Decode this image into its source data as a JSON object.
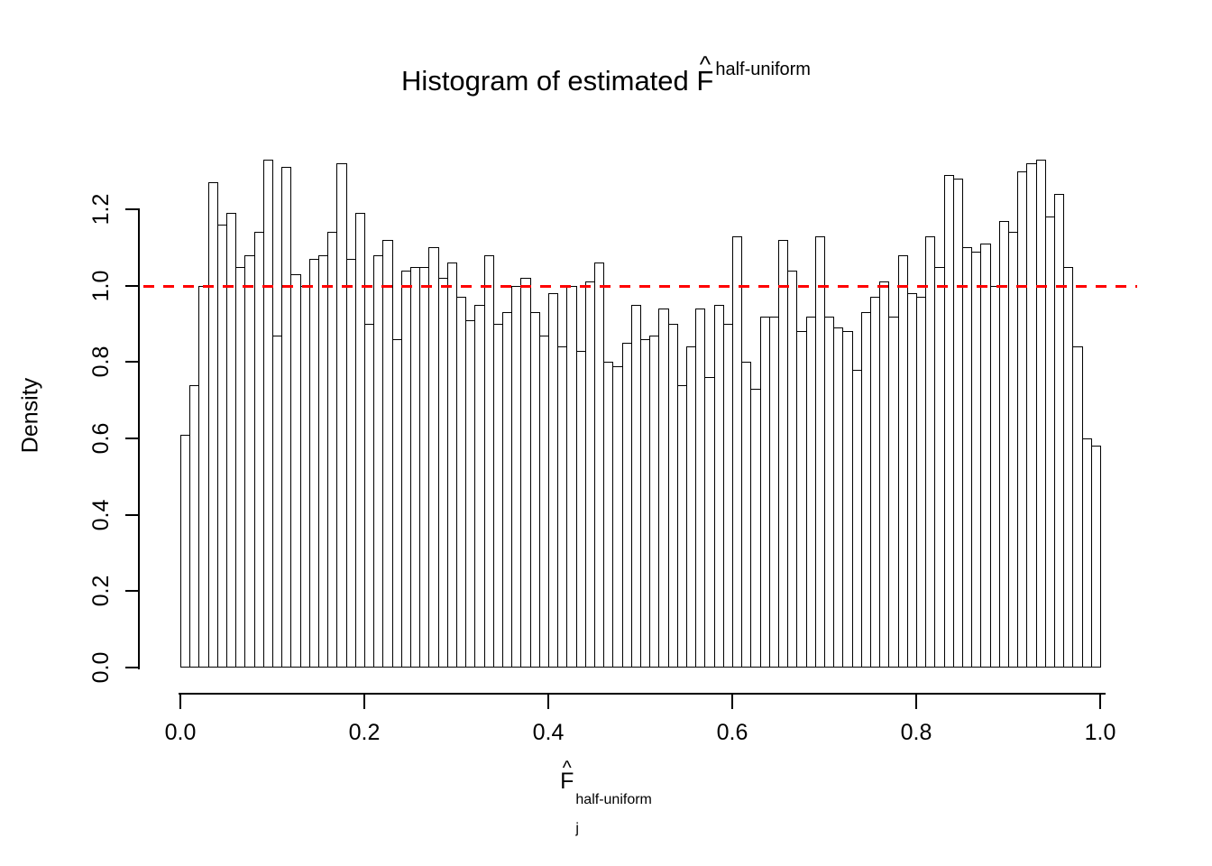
{
  "title": {
    "prefix": "Histogram of estimated ",
    "symbol": "F",
    "hat": "^",
    "superscript": "half-uniform"
  },
  "axes": {
    "y": {
      "label": "Density",
      "ticks": [
        "0.0",
        "0.2",
        "0.4",
        "0.6",
        "0.8",
        "1.0",
        "1.2"
      ]
    },
    "x": {
      "ticks": [
        "0.0",
        "0.2",
        "0.4",
        "0.6",
        "0.8",
        "1.0"
      ],
      "title": {
        "symbol": "F",
        "hat": "^",
        "subscript": "j",
        "superscript": "half-uniform"
      }
    }
  },
  "chart_data": {
    "type": "bar",
    "subtype": "histogram",
    "title": "Histogram of estimated F^half-uniform",
    "xlabel": "F_j^half-uniform",
    "ylabel": "Density",
    "xlim": [
      0,
      1
    ],
    "ylim": [
      0,
      1.2
    ],
    "grid": false,
    "legend": false,
    "bins": {
      "start": 0.0,
      "width": 0.01,
      "count": 100
    },
    "bar_fill": "#ffffff",
    "bar_stroke": "#000000",
    "reference_line": {
      "y": 1.0,
      "color": "#ff0000",
      "style": "dashed"
    },
    "values": [
      0.61,
      0.74,
      1.0,
      1.27,
      1.16,
      1.19,
      1.05,
      1.08,
      1.14,
      1.33,
      0.87,
      1.31,
      1.03,
      1.0,
      1.07,
      1.08,
      1.14,
      1.32,
      1.07,
      1.19,
      0.9,
      1.08,
      1.12,
      0.86,
      1.04,
      1.05,
      1.05,
      1.1,
      1.02,
      1.06,
      0.97,
      0.91,
      0.95,
      1.08,
      0.9,
      0.93,
      1.0,
      1.02,
      0.93,
      0.87,
      0.98,
      0.84,
      1.0,
      0.83,
      1.01,
      1.06,
      0.8,
      0.79,
      0.85,
      0.95,
      0.86,
      0.87,
      0.94,
      0.9,
      0.74,
      0.84,
      0.94,
      0.76,
      0.95,
      0.9,
      1.13,
      0.8,
      0.73,
      0.92,
      0.92,
      1.12,
      1.04,
      0.88,
      0.92,
      1.13,
      0.92,
      0.89,
      0.88,
      0.78,
      0.93,
      0.97,
      1.01,
      0.92,
      1.08,
      0.98,
      0.97,
      1.13,
      1.05,
      1.29,
      1.28,
      1.1,
      1.09,
      1.11,
      1.0,
      1.17,
      1.14,
      1.3,
      1.32,
      1.33,
      1.18,
      1.24,
      1.05,
      0.84,
      0.6,
      0.58
    ]
  }
}
